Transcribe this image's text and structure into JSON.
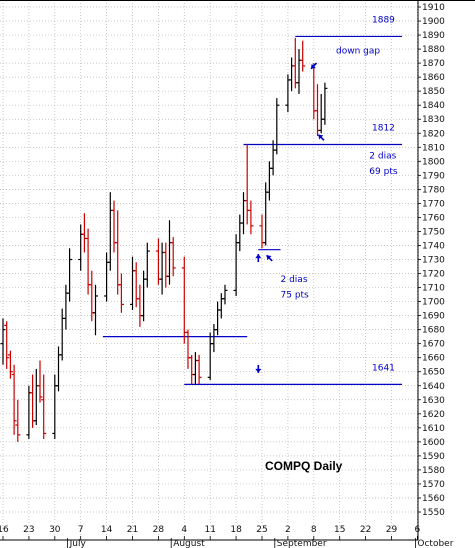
{
  "chart_data": {
    "type": "bar",
    "subtype": "ohlc",
    "title": "COMPQ Daily",
    "xlabel": "",
    "ylabel": "",
    "ylim": [
      1540,
      1915
    ],
    "y_ticks": [
      1550,
      1560,
      1570,
      1580,
      1590,
      1600,
      1610,
      1620,
      1630,
      1640,
      1650,
      1660,
      1670,
      1680,
      1690,
      1700,
      1710,
      1720,
      1730,
      1740,
      1750,
      1760,
      1770,
      1780,
      1790,
      1800,
      1810,
      1820,
      1830,
      1840,
      1850,
      1860,
      1870,
      1880,
      1890,
      1900,
      1910
    ],
    "grid": true,
    "legend": "none",
    "x_day_labels": [
      {
        "day": 0,
        "label": "16"
      },
      {
        "day": 7,
        "label": "23"
      },
      {
        "day": 14,
        "label": "30"
      },
      {
        "day": 21,
        "label": "7"
      },
      {
        "day": 28,
        "label": "14"
      },
      {
        "day": 35,
        "label": "21"
      },
      {
        "day": 42,
        "label": "28"
      },
      {
        "day": 49,
        "label": "4"
      },
      {
        "day": 56,
        "label": "11"
      },
      {
        "day": 63,
        "label": "18"
      },
      {
        "day": 70,
        "label": "25"
      },
      {
        "day": 77,
        "label": "2"
      },
      {
        "day": 84,
        "label": "8"
      },
      {
        "day": 91,
        "label": "15"
      },
      {
        "day": 98,
        "label": "22"
      },
      {
        "day": 105,
        "label": "29"
      },
      {
        "day": 112,
        "label": "6"
      }
    ],
    "x_month_labels": [
      {
        "day": 18,
        "label": "July"
      },
      {
        "day": 46,
        "label": "August"
      },
      {
        "day": 74,
        "label": "September"
      },
      {
        "day": 112,
        "label": "October"
      }
    ],
    "colors": {
      "up": "#000000",
      "down": "#cc0000",
      "lines": "#0000c8",
      "grid": "#b4b4b4"
    },
    "bars": [
      {
        "day": 0,
        "o": 1670,
        "h": 1688,
        "l": 1655,
        "c": 1680
      },
      {
        "day": 1,
        "o": 1683,
        "h": 1686,
        "l": 1652,
        "c": 1660
      },
      {
        "day": 2,
        "o": 1662,
        "h": 1665,
        "l": 1645,
        "c": 1650
      },
      {
        "day": 3,
        "o": 1648,
        "h": 1655,
        "l": 1605,
        "c": 1615
      },
      {
        "day": 4,
        "o": 1612,
        "h": 1630,
        "l": 1600,
        "c": 1605
      },
      {
        "day": 7,
        "o": 1605,
        "h": 1640,
        "l": 1602,
        "c": 1635
      },
      {
        "day": 8,
        "o": 1635,
        "h": 1648,
        "l": 1610,
        "c": 1615
      },
      {
        "day": 9,
        "o": 1615,
        "h": 1652,
        "l": 1612,
        "c": 1640
      },
      {
        "day": 10,
        "o": 1640,
        "h": 1658,
        "l": 1628,
        "c": 1632
      },
      {
        "day": 11,
        "o": 1630,
        "h": 1648,
        "l": 1602,
        "c": 1606
      },
      {
        "day": 14,
        "o": 1606,
        "h": 1648,
        "l": 1602,
        "c": 1640
      },
      {
        "day": 15,
        "o": 1640,
        "h": 1668,
        "l": 1636,
        "c": 1662
      },
      {
        "day": 16,
        "o": 1662,
        "h": 1695,
        "l": 1658,
        "c": 1688
      },
      {
        "day": 17,
        "o": 1688,
        "h": 1712,
        "l": 1680,
        "c": 1706
      },
      {
        "day": 18,
        "o": 1706,
        "h": 1738,
        "l": 1700,
        "c": 1730
      },
      {
        "day": 21,
        "o": 1730,
        "h": 1755,
        "l": 1722,
        "c": 1748
      },
      {
        "day": 22,
        "o": 1748,
        "h": 1763,
        "l": 1735,
        "c": 1745
      },
      {
        "day": 23,
        "o": 1745,
        "h": 1752,
        "l": 1705,
        "c": 1712
      },
      {
        "day": 24,
        "o": 1712,
        "h": 1722,
        "l": 1686,
        "c": 1692
      },
      {
        "day": 25,
        "o": 1692,
        "h": 1712,
        "l": 1676,
        "c": 1704
      },
      {
        "day": 28,
        "o": 1704,
        "h": 1735,
        "l": 1700,
        "c": 1728
      },
      {
        "day": 29,
        "o": 1728,
        "h": 1778,
        "l": 1722,
        "c": 1765
      },
      {
        "day": 30,
        "o": 1765,
        "h": 1772,
        "l": 1735,
        "c": 1742
      },
      {
        "day": 31,
        "o": 1742,
        "h": 1765,
        "l": 1705,
        "c": 1712
      },
      {
        "day": 32,
        "o": 1712,
        "h": 1720,
        "l": 1692,
        "c": 1698
      },
      {
        "day": 35,
        "o": 1698,
        "h": 1732,
        "l": 1694,
        "c": 1722
      },
      {
        "day": 36,
        "o": 1722,
        "h": 1728,
        "l": 1696,
        "c": 1702
      },
      {
        "day": 37,
        "o": 1702,
        "h": 1712,
        "l": 1682,
        "c": 1690
      },
      {
        "day": 38,
        "o": 1690,
        "h": 1722,
        "l": 1686,
        "c": 1716
      },
      {
        "day": 39,
        "o": 1716,
        "h": 1742,
        "l": 1710,
        "c": 1736
      },
      {
        "day": 42,
        "o": 1736,
        "h": 1745,
        "l": 1712,
        "c": 1716
      },
      {
        "day": 43,
        "o": 1716,
        "h": 1742,
        "l": 1705,
        "c": 1735
      },
      {
        "day": 44,
        "o": 1735,
        "h": 1742,
        "l": 1710,
        "c": 1718
      },
      {
        "day": 45,
        "o": 1718,
        "h": 1758,
        "l": 1712,
        "c": 1742
      },
      {
        "day": 46,
        "o": 1742,
        "h": 1746,
        "l": 1718,
        "c": 1724
      },
      {
        "day": 49,
        "o": 1724,
        "h": 1732,
        "l": 1670,
        "c": 1678
      },
      {
        "day": 50,
        "o": 1678,
        "h": 1680,
        "l": 1652,
        "c": 1660
      },
      {
        "day": 51,
        "o": 1660,
        "h": 1662,
        "l": 1641,
        "c": 1648
      },
      {
        "day": 52,
        "o": 1648,
        "h": 1664,
        "l": 1641,
        "c": 1658
      },
      {
        "day": 53,
        "o": 1658,
        "h": 1662,
        "l": 1641,
        "c": 1646
      },
      {
        "day": 56,
        "o": 1646,
        "h": 1678,
        "l": 1644,
        "c": 1670
      },
      {
        "day": 57,
        "o": 1670,
        "h": 1684,
        "l": 1664,
        "c": 1680
      },
      {
        "day": 58,
        "o": 1680,
        "h": 1700,
        "l": 1676,
        "c": 1694
      },
      {
        "day": 59,
        "o": 1694,
        "h": 1706,
        "l": 1688,
        "c": 1702
      },
      {
        "day": 60,
        "o": 1702,
        "h": 1712,
        "l": 1698,
        "c": 1708
      },
      {
        "day": 63,
        "o": 1708,
        "h": 1748,
        "l": 1704,
        "c": 1742
      },
      {
        "day": 64,
        "o": 1742,
        "h": 1762,
        "l": 1736,
        "c": 1756
      },
      {
        "day": 65,
        "o": 1756,
        "h": 1778,
        "l": 1748,
        "c": 1772
      },
      {
        "day": 66,
        "o": 1772,
        "h": 1812,
        "l": 1755,
        "c": 1765
      },
      {
        "day": 67,
        "o": 1765,
        "h": 1772,
        "l": 1748,
        "c": 1754
      },
      {
        "day": 70,
        "o": 1754,
        "h": 1762,
        "l": 1738,
        "c": 1742
      },
      {
        "day": 71,
        "o": 1742,
        "h": 1785,
        "l": 1740,
        "c": 1778
      },
      {
        "day": 72,
        "o": 1778,
        "h": 1800,
        "l": 1772,
        "c": 1795
      },
      {
        "day": 73,
        "o": 1795,
        "h": 1815,
        "l": 1790,
        "c": 1808
      },
      {
        "day": 74,
        "o": 1808,
        "h": 1845,
        "l": 1805,
        "c": 1840
      },
      {
        "day": 77,
        "o": 1840,
        "h": 1862,
        "l": 1835,
        "c": 1858
      },
      {
        "day": 78,
        "o": 1858,
        "h": 1874,
        "l": 1850,
        "c": 1868
      },
      {
        "day": 79,
        "o": 1868,
        "h": 1888,
        "l": 1852,
        "c": 1856
      },
      {
        "day": 80,
        "o": 1856,
        "h": 1880,
        "l": 1848,
        "c": 1872
      },
      {
        "day": 81,
        "o": 1872,
        "h": 1886,
        "l": 1864,
        "c": 1868
      },
      {
        "day": 84,
        "o": 1868,
        "h": 1870,
        "l": 1830,
        "c": 1836
      },
      {
        "day": 85,
        "o": 1836,
        "h": 1855,
        "l": 1818,
        "c": 1822
      },
      {
        "day": 86,
        "o": 1822,
        "h": 1848,
        "l": 1820,
        "c": 1830
      },
      {
        "day": 87,
        "o": 1830,
        "h": 1856,
        "l": 1826,
        "c": 1852
      }
    ],
    "hlines": [
      {
        "y": 1889,
        "from_day": 79,
        "to_day": 111,
        "label": "1889"
      },
      {
        "y": 1812,
        "from_day": 65,
        "to_day": 111,
        "label": "1812"
      },
      {
        "y": 1737,
        "from_day": 69,
        "to_day": 75,
        "label": ""
      },
      {
        "y": 1675,
        "from_day": 27,
        "to_day": 66,
        "label": ""
      },
      {
        "y": 1641,
        "from_day": 49,
        "to_day": 111,
        "label": "1641"
      }
    ],
    "annotations": [
      {
        "day": 90,
        "y": 1877,
        "text": "down gap"
      },
      {
        "day": 99,
        "y": 1802,
        "text": "2 dias"
      },
      {
        "day": 99,
        "y": 1791,
        "text": "69 pts"
      },
      {
        "day": 75,
        "y": 1714,
        "text": "2 dias"
      },
      {
        "day": 75,
        "y": 1703,
        "text": "75 pts"
      }
    ],
    "arrows": [
      {
        "day": 84,
        "y": 1868,
        "dir": "down-left"
      },
      {
        "day": 86,
        "y": 1817,
        "dir": "up-left"
      },
      {
        "day": 69,
        "y": 1731,
        "dir": "up"
      },
      {
        "day": 72,
        "y": 1731,
        "dir": "up-left"
      },
      {
        "day": 69,
        "y": 1652,
        "dir": "down"
      }
    ]
  }
}
